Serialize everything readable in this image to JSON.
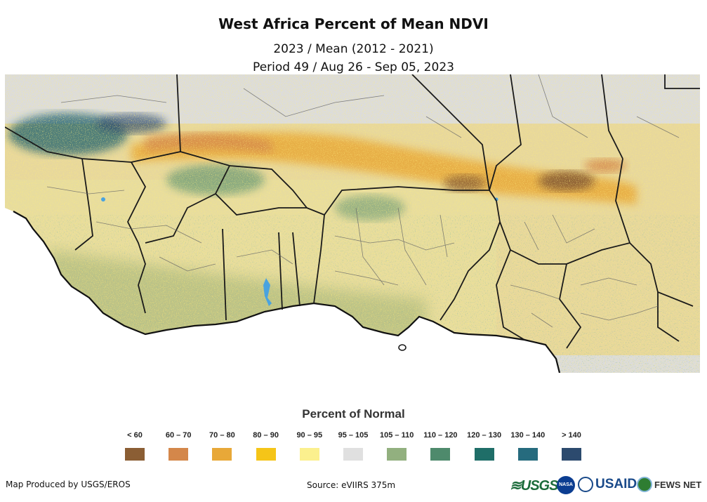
{
  "title": "West Africa Percent of Mean NDVI",
  "subtitle_line1": "2023 / Mean (2012 - 2021)",
  "subtitle_line2": "Period 49 / Aug 26 - Sep 05, 2023",
  "map": {
    "region": "West Africa",
    "layer": "Percent of Mean NDVI"
  },
  "legend": {
    "title": "Percent of Normal",
    "items": [
      {
        "label": "< 60",
        "color": "#8b5e34"
      },
      {
        "label": "60 – 70",
        "color": "#d4874a"
      },
      {
        "label": "70 – 80",
        "color": "#e8a838"
      },
      {
        "label": "80 – 90",
        "color": "#f5c518"
      },
      {
        "label": "90 – 95",
        "color": "#fbf08e"
      },
      {
        "label": "95 – 105",
        "color": "#e0e0e0"
      },
      {
        "label": "105 – 110",
        "color": "#92b07f"
      },
      {
        "label": "110 – 120",
        "color": "#4e8a6c"
      },
      {
        "label": "120 – 130",
        "color": "#1f6e68"
      },
      {
        "label": "130 – 140",
        "color": "#266b7e"
      },
      {
        "label": "> 140",
        "color": "#2c4a6e"
      }
    ]
  },
  "footer": {
    "credit": "Map Produced by USGS/EROS",
    "source": "Source: eVIIRS 375m"
  },
  "logos": {
    "usgs": "≋USGS",
    "nasa": "NASA",
    "usaid": "USAID",
    "fews": "FEWS NET"
  }
}
